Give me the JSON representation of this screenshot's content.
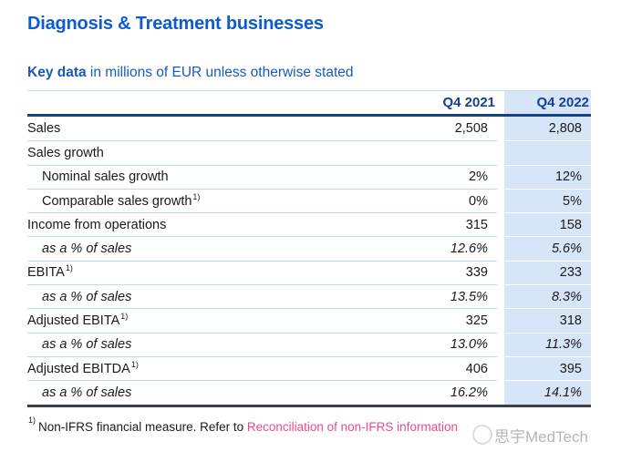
{
  "page": {
    "title": "Diagnosis & Treatment businesses",
    "subtitle_bold": "Key data",
    "subtitle_rest": " in millions of EUR unless otherwise stated"
  },
  "table": {
    "columns": {
      "q4_2021": "Q4 2021",
      "q4_2022": "Q4 2022"
    },
    "rows": [
      {
        "label": "Sales",
        "q4_2021": "2,508",
        "q4_2022": "2,808"
      },
      {
        "label": "Sales growth",
        "q4_2021": "",
        "q4_2022": ""
      },
      {
        "label": "Nominal sales growth",
        "q4_2021": "2%",
        "q4_2022": "12%"
      },
      {
        "label": "Comparable sales growth",
        "sup": "1)",
        "q4_2021": "0%",
        "q4_2022": "5%"
      },
      {
        "label": "Income from operations",
        "q4_2021": "315",
        "q4_2022": "158"
      },
      {
        "label": "as a % of sales",
        "q4_2021": "12.6%",
        "q4_2022": "5.6%"
      },
      {
        "label": "EBITA",
        "sup": "1)",
        "q4_2021": "339",
        "q4_2022": "233"
      },
      {
        "label": "as a % of sales",
        "q4_2021": "13.5%",
        "q4_2022": "8.3%"
      },
      {
        "label": "Adjusted EBITA",
        "sup": "1)",
        "q4_2021": "325",
        "q4_2022": "318"
      },
      {
        "label": "as a % of sales",
        "q4_2021": "13.0%",
        "q4_2022": "11.3%"
      },
      {
        "label": "Adjusted EBITDA",
        "sup": "1)",
        "q4_2021": "406",
        "q4_2022": "395"
      },
      {
        "label": "as a % of sales",
        "q4_2021": "16.2%",
        "q4_2022": "14.1%"
      }
    ]
  },
  "footnote": {
    "marker": "1)",
    "text": "Non-IFRS financial measure. Refer to ",
    "link": "Reconciliation of non-IFRS information"
  },
  "watermark": {
    "text": "思宇MedTech"
  },
  "colors": {
    "title_blue": "#0c5bd3",
    "subtitle_blue": "#1a59bb",
    "header_text_navy": "#163f96",
    "header_rule_navy": "#16418f",
    "row_separator_blue": "#bdd8f1",
    "highlight_column_bg": "#d6e6f7",
    "bottom_rule_dark": "#3a3f49",
    "link_pink": "#ea4a8f",
    "watermark_gray": "#aeaeae"
  }
}
